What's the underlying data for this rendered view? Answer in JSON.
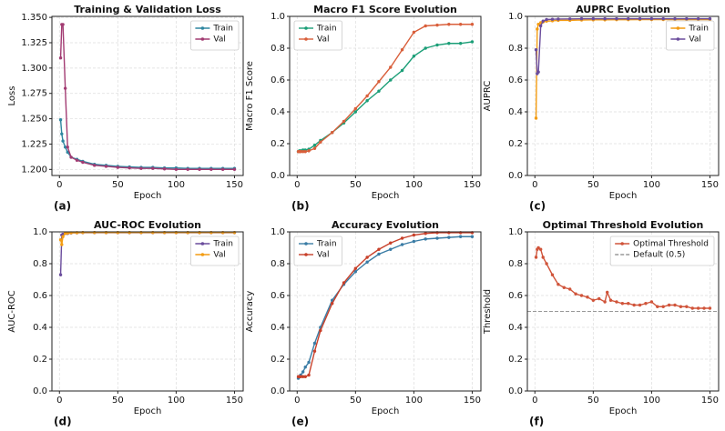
{
  "chart_data": [
    {
      "type": "line",
      "title": "Training & Validation Loss",
      "xlabel": "Epoch",
      "ylabel": "Loss",
      "panel_label": "(a)",
      "legend": "upper right",
      "grid": true,
      "x": [
        1,
        2,
        3,
        5,
        7,
        10,
        15,
        20,
        30,
        40,
        50,
        60,
        70,
        80,
        90,
        100,
        110,
        120,
        130,
        140,
        150
      ],
      "series": [
        {
          "name": "Train",
          "color": "#2e86a0",
          "values": [
            1.249,
            1.235,
            1.228,
            1.222,
            1.217,
            1.212,
            1.21,
            1.208,
            1.205,
            1.204,
            1.203,
            1.2025,
            1.202,
            1.202,
            1.2015,
            1.2015,
            1.201,
            1.201,
            1.201,
            1.201,
            1.201
          ]
        },
        {
          "name": "Val",
          "color": "#a23b72",
          "values": [
            1.31,
            1.343,
            1.343,
            1.28,
            1.222,
            1.212,
            1.209,
            1.207,
            1.204,
            1.203,
            1.202,
            1.2015,
            1.201,
            1.201,
            1.2005,
            1.2,
            1.2,
            1.2,
            1.2,
            1.2,
            1.2
          ]
        }
      ],
      "xlim": [
        -6.45,
        157.45
      ],
      "xticks": [
        0,
        50,
        100,
        150
      ],
      "ylim": [
        1.194,
        1.351
      ],
      "yticks": [
        {
          "value": 1.2,
          "label": "1.200"
        },
        1.225,
        {
          "value": 1.25,
          "label": "1.250"
        },
        1.275,
        {
          "value": 1.3,
          "label": "1.300"
        },
        1.325,
        {
          "value": 1.35,
          "label": "1.350"
        }
      ]
    },
    {
      "type": "line",
      "title": "Macro F1 Score Evolution",
      "xlabel": "Epoch",
      "ylabel": "Macro F1 Score",
      "panel_label": "(b)",
      "legend": "upper left",
      "grid": true,
      "x": [
        1,
        2,
        3,
        5,
        7,
        10,
        15,
        20,
        30,
        40,
        50,
        60,
        70,
        80,
        90,
        100,
        110,
        120,
        130,
        140,
        150
      ],
      "series": [
        {
          "name": "Train",
          "color": "#1b9e77",
          "values": [
            0.15,
            0.155,
            0.155,
            0.16,
            0.16,
            0.165,
            0.19,
            0.22,
            0.27,
            0.33,
            0.4,
            0.47,
            0.53,
            0.6,
            0.66,
            0.75,
            0.8,
            0.82,
            0.83,
            0.83,
            0.84
          ]
        },
        {
          "name": "Val",
          "color": "#d95f3b",
          "values": [
            0.15,
            0.15,
            0.15,
            0.15,
            0.15,
            0.155,
            0.17,
            0.21,
            0.27,
            0.34,
            0.42,
            0.5,
            0.59,
            0.68,
            0.79,
            0.9,
            0.94,
            0.945,
            0.95,
            0.95,
            0.95
          ]
        }
      ],
      "xlim": [
        -6.45,
        157.45
      ],
      "xticks": [
        0,
        50,
        100,
        150
      ],
      "ylim": [
        0,
        1
      ],
      "yticks": [
        {
          "value": 0,
          "label": "0.0"
        },
        0.2,
        0.4,
        0.6,
        0.8,
        {
          "value": 1,
          "label": "1.0"
        }
      ]
    },
    {
      "type": "line",
      "title": "AUPRC Evolution",
      "xlabel": "Epoch",
      "ylabel": "AUPRC",
      "panel_label": "(c)",
      "legend": "upper right",
      "grid": true,
      "x": [
        1,
        2,
        3,
        5,
        7,
        10,
        15,
        20,
        30,
        40,
        50,
        60,
        70,
        80,
        90,
        100,
        110,
        120,
        130,
        140,
        150
      ],
      "series": [
        {
          "name": "Train",
          "color": "#f39c12",
          "values": [
            0.36,
            0.92,
            0.95,
            0.96,
            0.965,
            0.97,
            0.972,
            0.975,
            0.975,
            0.977,
            0.978,
            0.978,
            0.979,
            0.979,
            0.98,
            0.98,
            0.98,
            0.98,
            0.98,
            0.98,
            0.98
          ]
        },
        {
          "name": "Val",
          "color": "#6a4c9c",
          "values": [
            0.79,
            0.64,
            0.65,
            0.94,
            0.97,
            0.98,
            0.982,
            0.983,
            0.984,
            0.985,
            0.985,
            0.985,
            0.985,
            0.985,
            0.985,
            0.985,
            0.985,
            0.985,
            0.985,
            0.985,
            0.985
          ]
        }
      ],
      "xlim": [
        -6.45,
        157.45
      ],
      "xticks": [
        0,
        50,
        100,
        150
      ],
      "ylim": [
        0,
        1
      ],
      "yticks": [
        {
          "value": 0,
          "label": "0.0"
        },
        0.2,
        0.4,
        0.6,
        0.8,
        {
          "value": 1,
          "label": "1.0"
        }
      ]
    },
    {
      "type": "line",
      "title": "AUC-ROC Evolution",
      "xlabel": "Epoch",
      "ylabel": "AUC-ROC",
      "panel_label": "(d)",
      "legend": "upper right",
      "grid": true,
      "x": [
        1,
        2,
        3,
        5,
        7,
        10,
        15,
        20,
        30,
        40,
        50,
        60,
        70,
        80,
        90,
        100,
        110,
        120,
        130,
        140,
        150
      ],
      "series": [
        {
          "name": "Train",
          "color": "#6a4c9c",
          "values": [
            0.73,
            0.98,
            0.985,
            0.99,
            0.99,
            0.993,
            0.994,
            0.995,
            0.995,
            0.995,
            0.995,
            0.995,
            0.995,
            0.995,
            0.995,
            0.995,
            0.995,
            0.995,
            0.995,
            0.995,
            0.995
          ]
        },
        {
          "name": "Val",
          "color": "#f39c12",
          "values": [
            0.95,
            0.92,
            0.97,
            0.99,
            0.992,
            0.994,
            0.995,
            0.996,
            0.996,
            0.996,
            0.996,
            0.996,
            0.996,
            0.996,
            0.996,
            0.996,
            0.996,
            0.996,
            0.996,
            0.996,
            0.996
          ]
        }
      ],
      "xlim": [
        -6.45,
        157.45
      ],
      "xticks": [
        0,
        50,
        100,
        150
      ],
      "ylim": [
        0,
        1
      ],
      "yticks": [
        {
          "value": 0,
          "label": "0.0"
        },
        0.2,
        0.4,
        0.6,
        0.8,
        {
          "value": 1,
          "label": "1.0"
        }
      ]
    },
    {
      "type": "line",
      "title": "Accuracy Evolution",
      "xlabel": "Epoch",
      "ylabel": "Accuracy",
      "panel_label": "(e)",
      "legend": "upper left",
      "grid": true,
      "x": [
        1,
        2,
        3,
        5,
        7,
        10,
        15,
        20,
        30,
        40,
        50,
        60,
        70,
        80,
        90,
        100,
        110,
        120,
        130,
        140,
        150
      ],
      "series": [
        {
          "name": "Train",
          "color": "#3a7ca5",
          "values": [
            0.08,
            0.09,
            0.1,
            0.12,
            0.15,
            0.18,
            0.3,
            0.4,
            0.57,
            0.67,
            0.75,
            0.81,
            0.86,
            0.89,
            0.92,
            0.94,
            0.955,
            0.96,
            0.965,
            0.97,
            0.97
          ]
        },
        {
          "name": "Val",
          "color": "#c8402a",
          "values": [
            0.09,
            0.09,
            0.09,
            0.09,
            0.09,
            0.1,
            0.25,
            0.38,
            0.55,
            0.68,
            0.77,
            0.84,
            0.89,
            0.93,
            0.96,
            0.98,
            0.99,
            0.995,
            0.995,
            0.995,
            0.995
          ]
        }
      ],
      "xlim": [
        -6.45,
        157.45
      ],
      "xticks": [
        0,
        50,
        100,
        150
      ],
      "ylim": [
        0,
        1
      ],
      "yticks": [
        {
          "value": 0,
          "label": "0.0"
        },
        0.2,
        0.4,
        0.6,
        0.8,
        {
          "value": 1,
          "label": "1.0"
        }
      ]
    },
    {
      "type": "line",
      "title": "Optimal Threshold Evolution",
      "xlabel": "Epoch",
      "ylabel": "Threshold",
      "panel_label": "(f)",
      "legend": "upper right",
      "grid": true,
      "x": [
        1,
        2,
        3,
        5,
        7,
        10,
        15,
        20,
        25,
        30,
        35,
        40,
        45,
        50,
        55,
        60,
        62,
        65,
        70,
        75,
        80,
        85,
        90,
        95,
        100,
        105,
        110,
        115,
        120,
        125,
        130,
        135,
        140,
        145,
        150
      ],
      "series": [
        {
          "name": "Optimal Threshold",
          "color": "#d0543a",
          "values": [
            0.84,
            0.89,
            0.9,
            0.89,
            0.84,
            0.8,
            0.73,
            0.67,
            0.65,
            0.64,
            0.61,
            0.6,
            0.59,
            0.57,
            0.58,
            0.56,
            0.62,
            0.57,
            0.56,
            0.55,
            0.55,
            0.54,
            0.54,
            0.55,
            0.56,
            0.53,
            0.53,
            0.54,
            0.54,
            0.53,
            0.53,
            0.52,
            0.52,
            0.52,
            0.52
          ]
        }
      ],
      "hline": {
        "name": "Default (0.5)",
        "value": 0.5,
        "color": "#999999"
      },
      "xlim": [
        -6.45,
        157.45
      ],
      "xticks": [
        0,
        50,
        100,
        150
      ],
      "ylim": [
        0,
        1
      ],
      "yticks": [
        {
          "value": 0,
          "label": "0.0"
        },
        0.2,
        0.4,
        0.6,
        0.8,
        {
          "value": 1,
          "label": "1.0"
        }
      ]
    }
  ]
}
